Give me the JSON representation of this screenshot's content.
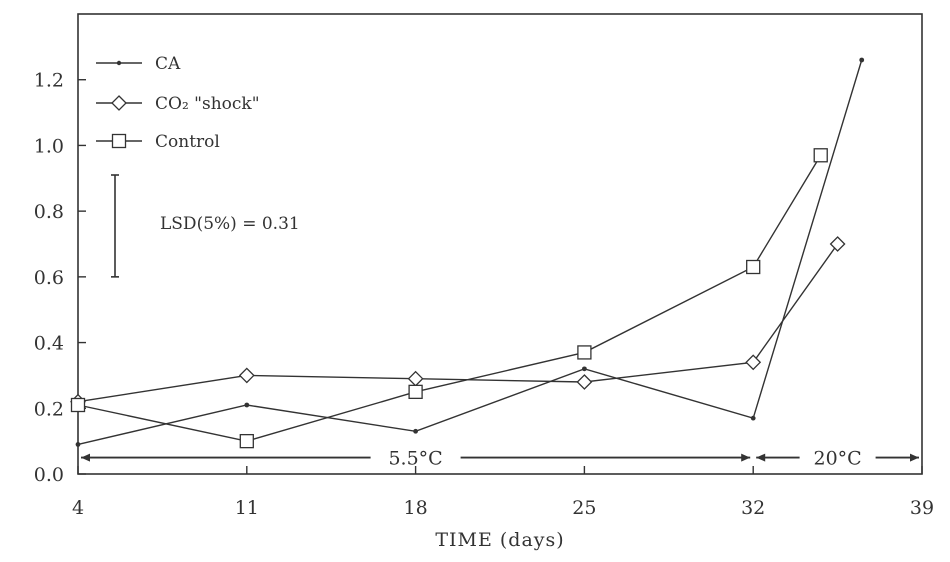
{
  "chart_data": {
    "type": "line",
    "title": "",
    "xlabel": "TIME (days)",
    "ylabel": "",
    "xlim": [
      4,
      39
    ],
    "ylim": [
      0.0,
      1.4
    ],
    "x_ticks": [
      "4",
      "11",
      "18",
      "25",
      "32",
      "39"
    ],
    "y_ticks": [
      "0.0",
      "0.2",
      "0.4",
      "0.6",
      "0.8",
      "1.0",
      "1.2"
    ],
    "grid": false,
    "legend_position": "top-left",
    "series": [
      {
        "name": "CA",
        "marker": "dot",
        "x": [
          4,
          11,
          18,
          25,
          32,
          36.5
        ],
        "y": [
          0.09,
          0.21,
          0.13,
          0.32,
          0.17,
          1.26
        ]
      },
      {
        "name": "CO₂ \"shock\"",
        "marker": "diamond",
        "x": [
          4,
          11,
          18,
          25,
          32,
          35.5
        ],
        "y": [
          0.22,
          0.3,
          0.29,
          0.28,
          0.34,
          0.7
        ]
      },
      {
        "name": "Control",
        "marker": "square",
        "x": [
          4,
          11,
          18,
          25,
          32,
          34.8
        ],
        "y": [
          0.21,
          0.1,
          0.25,
          0.37,
          0.63,
          0.97
        ]
      }
    ],
    "annotations": {
      "lsd_label": "LSD(5%) = 0.31",
      "lsd_value": 0.31,
      "lsd_bar_y": [
        0.6,
        0.91
      ],
      "periods": [
        {
          "label": "5.5°C",
          "x": [
            4,
            32
          ]
        },
        {
          "label": "20°C",
          "x": [
            32,
            39
          ]
        }
      ],
      "periods_y": 0.05
    }
  }
}
